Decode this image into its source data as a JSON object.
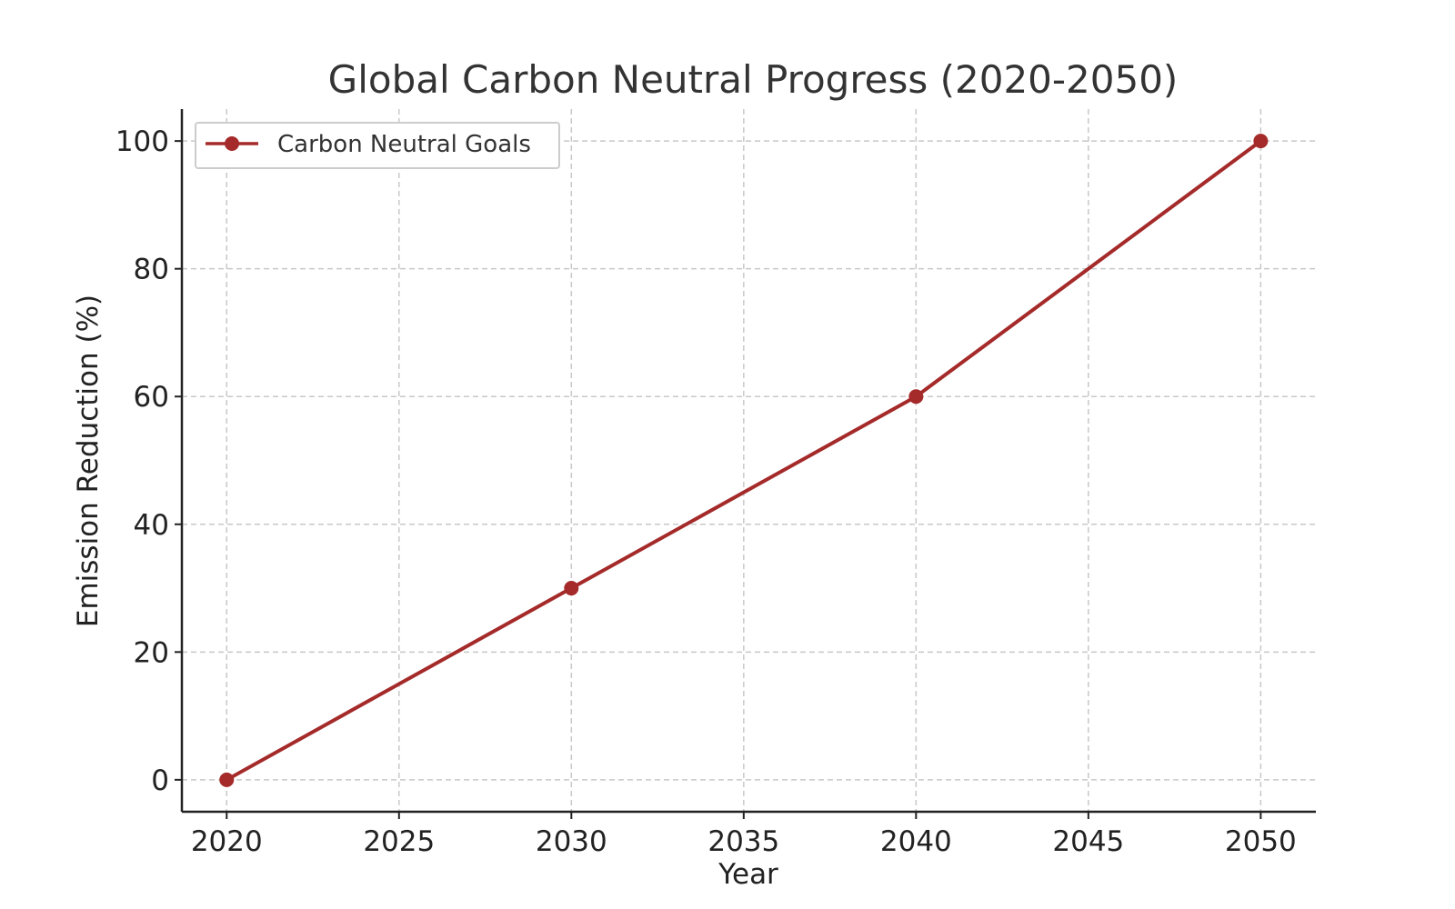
{
  "chart_data": {
    "type": "line",
    "title": "Global Carbon Neutral Progress (2020-2050)",
    "xlabel": "Year",
    "ylabel": "Emission Reduction (%)",
    "xlim": [
      2018.7,
      2051.6
    ],
    "ylim": [
      -5,
      105
    ],
    "xticks": [
      2020,
      2025,
      2030,
      2035,
      2040,
      2045,
      2050
    ],
    "yticks": [
      0,
      20,
      40,
      60,
      80,
      100
    ],
    "grid": true,
    "legend": "top-left",
    "series": [
      {
        "name": "Carbon Neutral Goals",
        "color": "#a52a2a",
        "marker": "circle",
        "x": [
          2020,
          2030,
          2040,
          2050
        ],
        "y": [
          0,
          30,
          60,
          100
        ]
      }
    ]
  }
}
